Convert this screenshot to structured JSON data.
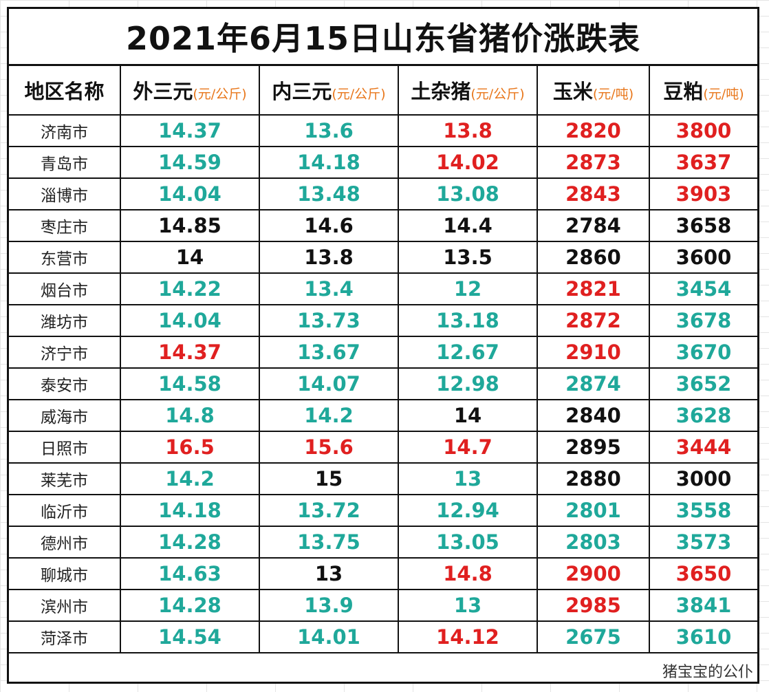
{
  "title": "2021年6月15日山东省猪价涨跌表",
  "headers": [
    {
      "label": "地区名称",
      "unit": ""
    },
    {
      "label": "外三元",
      "unit": "(元/公斤)"
    },
    {
      "label": "内三元",
      "unit": "(元/公斤)"
    },
    {
      "label": "土杂猪",
      "unit": "(元/公斤)"
    },
    {
      "label": "玉米",
      "unit": "(元/吨)"
    },
    {
      "label": "豆粕",
      "unit": "(元/吨)"
    }
  ],
  "colors": {
    "up": "#e02020",
    "down": "#1fa89a",
    "flat": "#111111",
    "unit": "#e8761a"
  },
  "rows": [
    {
      "city": "济南市",
      "cells": [
        {
          "v": "14.37",
          "c": "teal"
        },
        {
          "v": "13.6",
          "c": "teal"
        },
        {
          "v": "13.8",
          "c": "red"
        },
        {
          "v": "2820",
          "c": "red"
        },
        {
          "v": "3800",
          "c": "red"
        }
      ]
    },
    {
      "city": "青岛市",
      "cells": [
        {
          "v": "14.59",
          "c": "teal"
        },
        {
          "v": "14.18",
          "c": "teal"
        },
        {
          "v": "14.02",
          "c": "red"
        },
        {
          "v": "2873",
          "c": "red"
        },
        {
          "v": "3637",
          "c": "red"
        }
      ]
    },
    {
      "city": "淄博市",
      "cells": [
        {
          "v": "14.04",
          "c": "teal"
        },
        {
          "v": "13.48",
          "c": "teal"
        },
        {
          "v": "13.08",
          "c": "teal"
        },
        {
          "v": "2843",
          "c": "red"
        },
        {
          "v": "3903",
          "c": "red"
        }
      ]
    },
    {
      "city": "枣庄市",
      "cells": [
        {
          "v": "14.85",
          "c": "black"
        },
        {
          "v": "14.6",
          "c": "black"
        },
        {
          "v": "14.4",
          "c": "black"
        },
        {
          "v": "2784",
          "c": "black"
        },
        {
          "v": "3658",
          "c": "black"
        }
      ]
    },
    {
      "city": "东营市",
      "cells": [
        {
          "v": "14",
          "c": "black"
        },
        {
          "v": "13.8",
          "c": "black"
        },
        {
          "v": "13.5",
          "c": "black"
        },
        {
          "v": "2860",
          "c": "black"
        },
        {
          "v": "3600",
          "c": "black"
        }
      ]
    },
    {
      "city": "烟台市",
      "cells": [
        {
          "v": "14.22",
          "c": "teal"
        },
        {
          "v": "13.4",
          "c": "teal"
        },
        {
          "v": "12",
          "c": "teal"
        },
        {
          "v": "2821",
          "c": "red"
        },
        {
          "v": "3454",
          "c": "teal"
        }
      ]
    },
    {
      "city": "潍坊市",
      "cells": [
        {
          "v": "14.04",
          "c": "teal"
        },
        {
          "v": "13.73",
          "c": "teal"
        },
        {
          "v": "13.18",
          "c": "teal"
        },
        {
          "v": "2872",
          "c": "red"
        },
        {
          "v": "3678",
          "c": "teal"
        }
      ]
    },
    {
      "city": "济宁市",
      "cells": [
        {
          "v": "14.37",
          "c": "red"
        },
        {
          "v": "13.67",
          "c": "teal"
        },
        {
          "v": "12.67",
          "c": "teal"
        },
        {
          "v": "2910",
          "c": "red"
        },
        {
          "v": "3670",
          "c": "teal"
        }
      ]
    },
    {
      "city": "泰安市",
      "cells": [
        {
          "v": "14.58",
          "c": "teal"
        },
        {
          "v": "14.07",
          "c": "teal"
        },
        {
          "v": "12.98",
          "c": "teal"
        },
        {
          "v": "2874",
          "c": "teal"
        },
        {
          "v": "3652",
          "c": "teal"
        }
      ]
    },
    {
      "city": "威海市",
      "cells": [
        {
          "v": "14.8",
          "c": "teal"
        },
        {
          "v": "14.2",
          "c": "teal"
        },
        {
          "v": "14",
          "c": "black"
        },
        {
          "v": "2840",
          "c": "black"
        },
        {
          "v": "3628",
          "c": "teal"
        }
      ]
    },
    {
      "city": "日照市",
      "cells": [
        {
          "v": "16.5",
          "c": "red"
        },
        {
          "v": "15.6",
          "c": "red"
        },
        {
          "v": "14.7",
          "c": "red"
        },
        {
          "v": "2895",
          "c": "black"
        },
        {
          "v": "3444",
          "c": "red"
        }
      ]
    },
    {
      "city": "莱芜市",
      "cells": [
        {
          "v": "14.2",
          "c": "teal"
        },
        {
          "v": "15",
          "c": "black"
        },
        {
          "v": "13",
          "c": "teal"
        },
        {
          "v": "2880",
          "c": "black"
        },
        {
          "v": "3000",
          "c": "black"
        }
      ]
    },
    {
      "city": "临沂市",
      "cells": [
        {
          "v": "14.18",
          "c": "teal"
        },
        {
          "v": "13.72",
          "c": "teal"
        },
        {
          "v": "12.94",
          "c": "teal"
        },
        {
          "v": "2801",
          "c": "teal"
        },
        {
          "v": "3558",
          "c": "teal"
        }
      ]
    },
    {
      "city": "德州市",
      "cells": [
        {
          "v": "14.28",
          "c": "teal"
        },
        {
          "v": "13.75",
          "c": "teal"
        },
        {
          "v": "13.05",
          "c": "teal"
        },
        {
          "v": "2803",
          "c": "teal"
        },
        {
          "v": "3573",
          "c": "teal"
        }
      ]
    },
    {
      "city": "聊城市",
      "cells": [
        {
          "v": "14.63",
          "c": "teal"
        },
        {
          "v": "13",
          "c": "black"
        },
        {
          "v": "14.8",
          "c": "red"
        },
        {
          "v": "2900",
          "c": "red"
        },
        {
          "v": "3650",
          "c": "red"
        }
      ]
    },
    {
      "city": "滨州市",
      "cells": [
        {
          "v": "14.28",
          "c": "teal"
        },
        {
          "v": "13.9",
          "c": "teal"
        },
        {
          "v": "13",
          "c": "teal"
        },
        {
          "v": "2985",
          "c": "red"
        },
        {
          "v": "3841",
          "c": "teal"
        }
      ]
    },
    {
      "city": "菏泽市",
      "cells": [
        {
          "v": "14.54",
          "c": "teal"
        },
        {
          "v": "14.01",
          "c": "teal"
        },
        {
          "v": "14.12",
          "c": "red"
        },
        {
          "v": "2675",
          "c": "teal"
        },
        {
          "v": "3610",
          "c": "teal"
        }
      ]
    }
  ],
  "watermark": "猪宝宝的公仆"
}
